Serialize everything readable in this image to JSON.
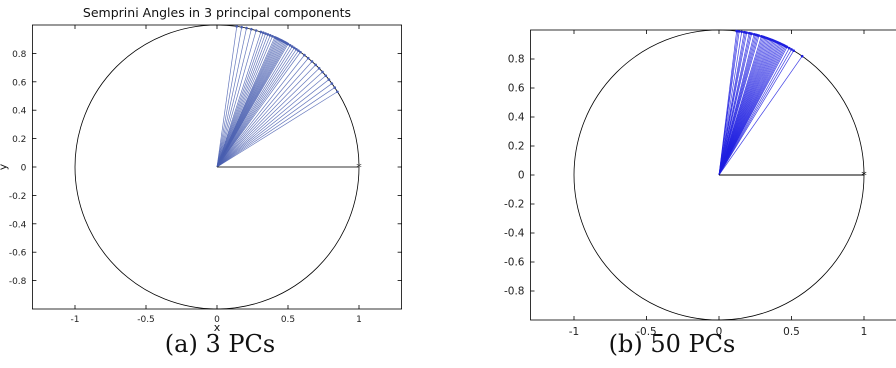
{
  "chart_data": [
    {
      "type": "line",
      "title": "Semprini Angles in 3 principal components",
      "xlabel": "x",
      "ylabel": "y",
      "xlim": [
        -1.3,
        1.3
      ],
      "ylim": [
        -1.0,
        1.0
      ],
      "xticks": [
        -1,
        -0.5,
        0,
        0.5,
        1
      ],
      "xtick_labels": [
        "-1",
        "-0.5",
        "0",
        "0.5",
        "1"
      ],
      "yticks": [
        0.8,
        0.6,
        0.4,
        0.2,
        0,
        -0.2,
        -0.4,
        -0.6,
        -0.8
      ],
      "ytick_labels": [
        "0.8",
        "0.6",
        "0.4",
        "0.2",
        "0",
        "-0.2",
        "-0.4",
        "-0.6",
        "-0.8"
      ],
      "unit_circle": true,
      "reference_vector": [
        1,
        0
      ],
      "vectors_angles_deg": [
        82,
        80,
        78,
        76,
        74,
        72,
        71,
        70,
        69,
        68,
        67,
        66,
        65.5,
        65,
        64.5,
        64,
        63.5,
        63,
        62.5,
        62,
        61.5,
        61,
        60.5,
        60,
        59,
        58,
        57,
        56,
        55,
        54,
        52,
        50,
        48,
        46,
        44,
        42,
        40,
        38,
        36,
        34,
        32
      ],
      "line_color": "#4a5fb0",
      "reference_color": "#333333"
    },
    {
      "type": "line",
      "title": "",
      "xlim": [
        -1.3,
        1.3
      ],
      "ylim": [
        -1.0,
        1.0
      ],
      "xticks": [
        -1,
        -0.5,
        0,
        0.5,
        1
      ],
      "xtick_labels": [
        "-1",
        "-0.5",
        "0",
        "0.5",
        "1"
      ],
      "yticks": [
        0.8,
        0.6,
        0.4,
        0.2,
        0,
        -0.2,
        -0.4,
        -0.6,
        -0.8
      ],
      "ytick_labels": [
        "0.8",
        "0.6",
        "0.4",
        "0.2",
        "0",
        "-0.2",
        "-0.4",
        "-0.6",
        "-0.8"
      ],
      "unit_circle": true,
      "reference_vector": [
        1,
        0
      ],
      "vectors_angles_deg": [
        83,
        82.5,
        82,
        81,
        80,
        79.5,
        79,
        78,
        77.5,
        77,
        76,
        75.5,
        75,
        74.5,
        74,
        73,
        72.5,
        72,
        71.5,
        71,
        70.5,
        70,
        69.5,
        69,
        68.5,
        68,
        67.5,
        67,
        66.5,
        66,
        65.5,
        65,
        64.5,
        64,
        63.5,
        63,
        62.5,
        62,
        61,
        60,
        59,
        55
      ],
      "line_color": "#1f1fe0",
      "reference_color": "#000000"
    }
  ],
  "captions": [
    "(a) 3 PCs",
    "(b) 50 PCs"
  ]
}
